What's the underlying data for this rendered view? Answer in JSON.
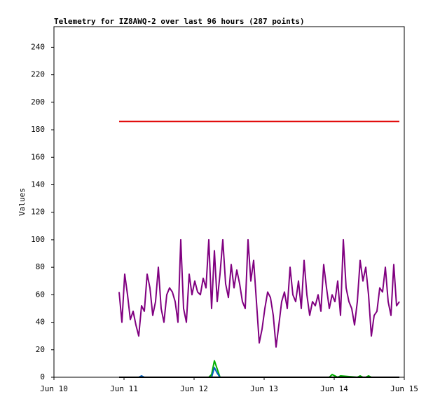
{
  "chart_data": {
    "type": "line",
    "title": "Telemetry for IZ8AWQ-2 over last 96 hours (287 points)",
    "y_label": "Values",
    "xlim": [
      10,
      15
    ],
    "xticks": [
      {
        "value": 10,
        "label": "Jun 10"
      },
      {
        "value": 11,
        "label": "Jun 11"
      },
      {
        "value": 12,
        "label": "Jun 12"
      },
      {
        "value": 13,
        "label": "Jun 13"
      },
      {
        "value": 14,
        "label": "Jun 14"
      },
      {
        "value": 15,
        "label": "Jun 15"
      }
    ],
    "ylim": [
      0,
      255
    ],
    "yticks": [
      0,
      20,
      40,
      60,
      80,
      100,
      120,
      140,
      160,
      180,
      200,
      220,
      240
    ],
    "grid": false,
    "series": [
      {
        "color": "#800080",
        "x": [
          10.93,
          10.97,
          11.01,
          11.05,
          11.09,
          11.13,
          11.17,
          11.21,
          11.25,
          11.29,
          11.33,
          11.37,
          11.41,
          11.45,
          11.49,
          11.53,
          11.57,
          11.61,
          11.65,
          11.69,
          11.73,
          11.77,
          11.81,
          11.85,
          11.89,
          11.93,
          11.97,
          12.01,
          12.05,
          12.09,
          12.13,
          12.17,
          12.21,
          12.25,
          12.29,
          12.33,
          12.37,
          12.41,
          12.45,
          12.49,
          12.53,
          12.57,
          12.61,
          12.65,
          12.69,
          12.73,
          12.77,
          12.81,
          12.85,
          12.89,
          12.93,
          12.97,
          13.01,
          13.05,
          13.09,
          13.13,
          13.17,
          13.21,
          13.25,
          13.29,
          13.33,
          13.37,
          13.41,
          13.45,
          13.49,
          13.53,
          13.57,
          13.61,
          13.65,
          13.69,
          13.73,
          13.77,
          13.81,
          13.85,
          13.89,
          13.93,
          13.97,
          14.01,
          14.05,
          14.09,
          14.13,
          14.17,
          14.21,
          14.25,
          14.29,
          14.33,
          14.37,
          14.41,
          14.45,
          14.49,
          14.53,
          14.57,
          14.61,
          14.65,
          14.69,
          14.73,
          14.77,
          14.81,
          14.85,
          14.89,
          14.93
        ],
        "values": [
          62,
          40,
          75,
          60,
          42,
          48,
          38,
          30,
          52,
          48,
          75,
          65,
          45,
          55,
          80,
          50,
          40,
          60,
          65,
          62,
          55,
          40,
          100,
          50,
          40,
          75,
          60,
          70,
          62,
          60,
          72,
          65,
          100,
          50,
          92,
          55,
          75,
          100,
          68,
          58,
          82,
          65,
          78,
          68,
          55,
          50,
          100,
          70,
          85,
          55,
          25,
          35,
          50,
          62,
          58,
          45,
          22,
          38,
          55,
          62,
          50,
          80,
          60,
          55,
          70,
          50,
          85,
          60,
          45,
          55,
          52,
          60,
          48,
          82,
          65,
          50,
          60,
          55,
          70,
          45,
          100,
          65,
          55,
          50,
          38,
          55,
          85,
          70,
          80,
          60,
          30,
          45,
          48,
          65,
          62,
          80,
          55,
          45,
          82,
          52,
          55
        ]
      },
      {
        "color": "#e00000",
        "x": [
          10.93,
          14.93
        ],
        "values": [
          186,
          186
        ]
      },
      {
        "color": "#00b000",
        "x": [
          10.93,
          12.21,
          12.25,
          12.29,
          12.33,
          12.37,
          13.93,
          13.97,
          14.01,
          14.05,
          14.09,
          14.33,
          14.37,
          14.41,
          14.45,
          14.49,
          14.53,
          14.93
        ],
        "values": [
          0,
          0,
          2,
          12,
          6,
          0,
          0,
          2,
          1,
          0,
          1,
          0,
          1,
          0,
          0,
          1,
          0,
          0
        ]
      },
      {
        "color": "#0060c0",
        "x": [
          10.93,
          11.21,
          11.25,
          11.29,
          12.25,
          12.29,
          12.33,
          12.37,
          14.93
        ],
        "values": [
          0,
          0,
          1,
          0,
          0,
          7,
          3,
          0,
          0
        ]
      },
      {
        "color": "#000000",
        "x": [
          10.93,
          14.93
        ],
        "values": [
          0,
          0
        ]
      }
    ]
  }
}
